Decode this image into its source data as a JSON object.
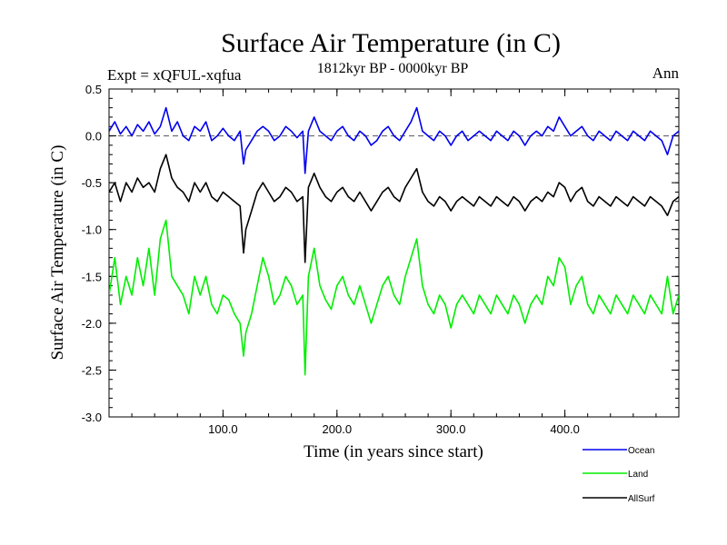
{
  "chart_data": {
    "type": "line",
    "title": "Surface Air Temperature (in C)",
    "experiment": "Expt = xQFUL-xqfua",
    "period": "1812kyr BP - 0000kyr BP",
    "season": "Ann",
    "xlabel": "Time (in years since start)",
    "ylabel": "Surface Air Temperature (in C)",
    "xlim": [
      0,
      500
    ],
    "ylim": [
      -3.0,
      0.5
    ],
    "x_ticks": [
      100,
      200,
      300,
      400
    ],
    "x_tick_labels": [
      "100.0",
      "200.0",
      "300.0",
      "400.0"
    ],
    "y_ticks": [
      0.5,
      0.0,
      -0.5,
      -1.0,
      -1.5,
      -2.0,
      -2.5,
      -3.0
    ],
    "y_tick_labels": [
      "0.5",
      "0.0",
      "-0.5",
      "-1.0",
      "-1.5",
      "-2.0",
      "-2.5",
      "-3.0"
    ],
    "reference_line": 0.0,
    "legend": [
      "Ocean",
      "Land",
      "AllSurf"
    ],
    "series": [
      {
        "name": "Ocean",
        "color": "#0000ee",
        "x": [
          0,
          5,
          10,
          15,
          20,
          25,
          30,
          35,
          40,
          45,
          50,
          55,
          60,
          65,
          70,
          75,
          80,
          85,
          90,
          95,
          100,
          105,
          110,
          115,
          118,
          120,
          125,
          130,
          135,
          140,
          145,
          150,
          155,
          160,
          165,
          170,
          172,
          175,
          180,
          185,
          190,
          195,
          200,
          205,
          210,
          215,
          220,
          225,
          230,
          235,
          240,
          245,
          250,
          255,
          260,
          265,
          270,
          275,
          280,
          285,
          290,
          295,
          300,
          305,
          310,
          315,
          320,
          325,
          330,
          335,
          340,
          345,
          350,
          355,
          360,
          365,
          370,
          375,
          380,
          385,
          390,
          395,
          400,
          405,
          410,
          415,
          420,
          425,
          430,
          435,
          440,
          445,
          450,
          455,
          460,
          465,
          470,
          475,
          480,
          485,
          490,
          495,
          500
        ],
        "values": [
          0.05,
          0.15,
          0.02,
          0.1,
          0.0,
          0.12,
          0.05,
          0.15,
          0.02,
          0.1,
          0.3,
          0.05,
          0.15,
          0.0,
          -0.05,
          0.1,
          0.05,
          0.15,
          -0.05,
          0.0,
          0.08,
          0.0,
          -0.05,
          0.05,
          -0.3,
          -0.15,
          -0.05,
          0.05,
          0.1,
          0.05,
          -0.05,
          0.0,
          0.1,
          0.05,
          -0.02,
          0.05,
          -0.4,
          0.05,
          0.2,
          0.05,
          0.0,
          -0.05,
          0.05,
          0.1,
          0.0,
          -0.05,
          0.05,
          0.0,
          -0.1,
          -0.05,
          0.05,
          0.1,
          0.0,
          -0.05,
          0.05,
          0.15,
          0.3,
          0.05,
          0.0,
          -0.05,
          0.05,
          0.0,
          -0.1,
          0.0,
          0.05,
          -0.05,
          0.0,
          0.05,
          0.0,
          -0.05,
          0.05,
          0.0,
          -0.05,
          0.05,
          0.0,
          -0.1,
          0.0,
          0.05,
          0.0,
          0.1,
          0.05,
          0.2,
          0.1,
          0.0,
          0.05,
          0.1,
          0.0,
          -0.05,
          0.05,
          0.0,
          -0.05,
          0.05,
          0.0,
          -0.05,
          0.05,
          0.0,
          -0.05,
          0.05,
          0.0,
          -0.05,
          -0.2,
          0.0,
          0.05
        ]
      },
      {
        "name": "AllSurf",
        "color": "#000000",
        "x": [
          0,
          5,
          10,
          15,
          20,
          25,
          30,
          35,
          40,
          45,
          50,
          55,
          60,
          65,
          70,
          75,
          80,
          85,
          90,
          95,
          100,
          105,
          110,
          115,
          118,
          120,
          125,
          130,
          135,
          140,
          145,
          150,
          155,
          160,
          165,
          170,
          172,
          175,
          180,
          185,
          190,
          195,
          200,
          205,
          210,
          215,
          220,
          225,
          230,
          235,
          240,
          245,
          250,
          255,
          260,
          265,
          270,
          275,
          280,
          285,
          290,
          295,
          300,
          305,
          310,
          315,
          320,
          325,
          330,
          335,
          340,
          345,
          350,
          355,
          360,
          365,
          370,
          375,
          380,
          385,
          390,
          395,
          400,
          405,
          410,
          415,
          420,
          425,
          430,
          435,
          440,
          445,
          450,
          455,
          460,
          465,
          470,
          475,
          480,
          485,
          490,
          495,
          500
        ],
        "values": [
          -0.6,
          -0.5,
          -0.7,
          -0.5,
          -0.6,
          -0.45,
          -0.55,
          -0.5,
          -0.6,
          -0.35,
          -0.2,
          -0.45,
          -0.55,
          -0.6,
          -0.7,
          -0.5,
          -0.6,
          -0.5,
          -0.65,
          -0.7,
          -0.6,
          -0.65,
          -0.7,
          -0.75,
          -1.25,
          -1.0,
          -0.8,
          -0.6,
          -0.5,
          -0.6,
          -0.7,
          -0.65,
          -0.55,
          -0.6,
          -0.7,
          -0.65,
          -1.35,
          -0.55,
          -0.4,
          -0.55,
          -0.65,
          -0.7,
          -0.6,
          -0.55,
          -0.65,
          -0.7,
          -0.6,
          -0.7,
          -0.8,
          -0.7,
          -0.6,
          -0.55,
          -0.65,
          -0.7,
          -0.55,
          -0.45,
          -0.35,
          -0.6,
          -0.7,
          -0.75,
          -0.65,
          -0.7,
          -0.8,
          -0.7,
          -0.65,
          -0.7,
          -0.75,
          -0.65,
          -0.7,
          -0.75,
          -0.65,
          -0.7,
          -0.75,
          -0.65,
          -0.7,
          -0.8,
          -0.7,
          -0.65,
          -0.7,
          -0.6,
          -0.65,
          -0.5,
          -0.55,
          -0.7,
          -0.6,
          -0.55,
          -0.7,
          -0.75,
          -0.65,
          -0.7,
          -0.75,
          -0.65,
          -0.7,
          -0.75,
          -0.65,
          -0.7,
          -0.75,
          -0.65,
          -0.7,
          -0.75,
          -0.85,
          -0.7,
          -0.65
        ]
      },
      {
        "name": "Land",
        "color": "#00ee00",
        "x": [
          0,
          5,
          10,
          15,
          20,
          25,
          30,
          35,
          40,
          45,
          50,
          55,
          60,
          65,
          70,
          75,
          80,
          85,
          90,
          95,
          100,
          105,
          110,
          115,
          118,
          120,
          125,
          130,
          135,
          140,
          145,
          150,
          155,
          160,
          165,
          170,
          172,
          175,
          180,
          185,
          190,
          195,
          200,
          205,
          210,
          215,
          220,
          225,
          230,
          235,
          240,
          245,
          250,
          255,
          260,
          265,
          270,
          275,
          280,
          285,
          290,
          295,
          300,
          305,
          310,
          315,
          320,
          325,
          330,
          335,
          340,
          345,
          350,
          355,
          360,
          365,
          370,
          375,
          380,
          385,
          390,
          395,
          400,
          405,
          410,
          415,
          420,
          425,
          430,
          435,
          440,
          445,
          450,
          455,
          460,
          465,
          470,
          475,
          480,
          485,
          490,
          495,
          500
        ],
        "values": [
          -1.7,
          -1.3,
          -1.8,
          -1.5,
          -1.7,
          -1.3,
          -1.6,
          -1.2,
          -1.7,
          -1.1,
          -0.9,
          -1.5,
          -1.6,
          -1.7,
          -1.9,
          -1.5,
          -1.7,
          -1.5,
          -1.8,
          -1.9,
          -1.7,
          -1.75,
          -1.9,
          -2.0,
          -2.35,
          -2.1,
          -1.9,
          -1.6,
          -1.3,
          -1.5,
          -1.8,
          -1.7,
          -1.5,
          -1.6,
          -1.8,
          -1.7,
          -2.55,
          -1.5,
          -1.2,
          -1.6,
          -1.75,
          -1.85,
          -1.6,
          -1.5,
          -1.7,
          -1.8,
          -1.6,
          -1.8,
          -2.0,
          -1.8,
          -1.6,
          -1.5,
          -1.7,
          -1.8,
          -1.5,
          -1.3,
          -1.1,
          -1.6,
          -1.8,
          -1.9,
          -1.7,
          -1.8,
          -2.05,
          -1.8,
          -1.7,
          -1.8,
          -1.9,
          -1.7,
          -1.8,
          -1.9,
          -1.7,
          -1.8,
          -1.9,
          -1.7,
          -1.8,
          -2.0,
          -1.8,
          -1.7,
          -1.8,
          -1.5,
          -1.6,
          -1.3,
          -1.4,
          -1.8,
          -1.6,
          -1.5,
          -1.8,
          -1.9,
          -1.7,
          -1.8,
          -1.9,
          -1.7,
          -1.8,
          -1.9,
          -1.7,
          -1.8,
          -1.9,
          -1.7,
          -1.8,
          -1.9,
          -1.5,
          -1.9,
          -1.7
        ]
      }
    ]
  }
}
